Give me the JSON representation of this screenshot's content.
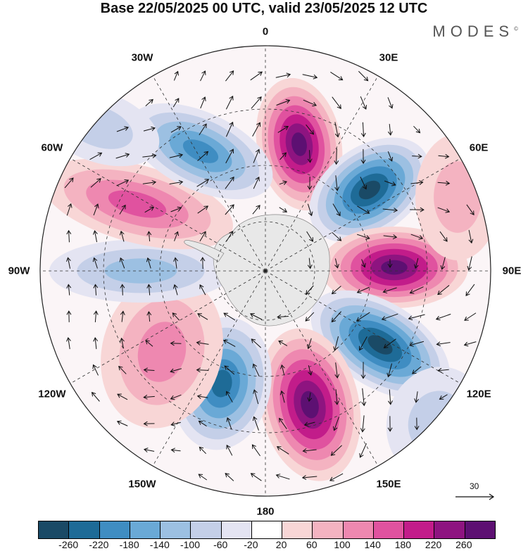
{
  "header": {
    "title": "Base 22/05/2025 00 UTC, valid 23/05/2025 12 UTC",
    "brand": "MODES",
    "brand_mark": "©"
  },
  "map": {
    "projection": "south-polar-stereographic",
    "longitude_labels": [
      "0",
      "30E",
      "60E",
      "90E",
      "120E",
      "150E",
      "180",
      "150W",
      "120W",
      "90W",
      "60W",
      "30W"
    ],
    "positive_color": "#7a1a8c",
    "negative_color": "#1d4f6e",
    "land_color": "#eeeeee"
  },
  "reference_vector": {
    "label": "30"
  },
  "colorbar": {
    "colors": [
      "#1a4a66",
      "#1e6b97",
      "#3f8dc2",
      "#6aa9d6",
      "#9cc0e2",
      "#c4cfe8",
      "#e4e4f2",
      "#ffffff",
      "#f8d6d6",
      "#f4b3c1",
      "#ee88b0",
      "#e0529f",
      "#c21c8a",
      "#8e1480",
      "#5d1072"
    ],
    "labels": [
      "-260",
      "-220",
      "-180",
      "-140",
      "-100",
      "-60",
      "-20",
      "20",
      "60",
      "100",
      "140",
      "180",
      "220",
      "260"
    ]
  }
}
